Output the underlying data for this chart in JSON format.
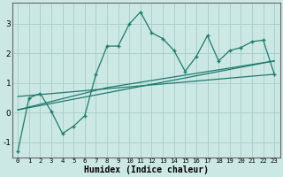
{
  "xlabel": "Humidex (Indice chaleur)",
  "bg_color": "#cce8e4",
  "grid_color": "#aad0cc",
  "line_color": "#1e7a6e",
  "xlim": [
    -0.5,
    23.5
  ],
  "ylim": [
    -1.5,
    3.7
  ],
  "yticks": [
    -1,
    0,
    1,
    2,
    3
  ],
  "xticks": [
    0,
    1,
    2,
    3,
    4,
    5,
    6,
    7,
    8,
    9,
    10,
    11,
    12,
    13,
    14,
    15,
    16,
    17,
    18,
    19,
    20,
    21,
    22,
    23
  ],
  "main_x": [
    0,
    1,
    2,
    3,
    4,
    5,
    6,
    7,
    8,
    9,
    10,
    11,
    12,
    13,
    14,
    15,
    16,
    17,
    18,
    19,
    20,
    21,
    22,
    23
  ],
  "main_y": [
    -1.3,
    0.5,
    0.65,
    0.05,
    -0.7,
    -0.45,
    -0.1,
    1.3,
    2.25,
    2.25,
    3.0,
    3.4,
    2.7,
    2.5,
    2.1,
    1.4,
    1.9,
    2.6,
    1.75,
    2.1,
    2.2,
    2.4,
    2.45,
    1.3
  ],
  "fit1_x": [
    0,
    23
  ],
  "fit1_y": [
    0.55,
    1.3
  ],
  "fit2_x": [
    0,
    23
  ],
  "fit2_y": [
    0.1,
    1.75
  ],
  "fit3_x": [
    0,
    8,
    23
  ],
  "fit3_y": [
    0.1,
    0.85,
    1.75
  ]
}
